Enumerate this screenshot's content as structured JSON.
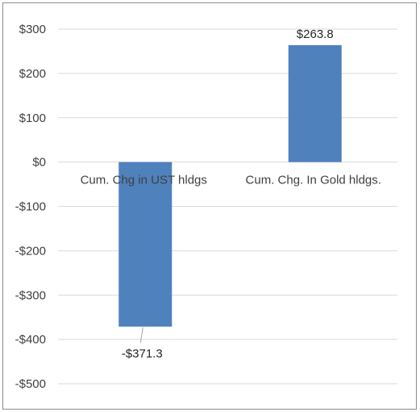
{
  "chart_data": {
    "type": "bar",
    "title": "",
    "xlabel": "",
    "ylabel": "",
    "categories": [
      "Cum. Chg in UST hldgs",
      "Cum. Chg. In Gold hldgs."
    ],
    "values": [
      -371.3,
      263.8
    ],
    "data_labels": [
      "-$371.3",
      "$263.8"
    ],
    "ylim": [
      -500,
      300
    ],
    "yticks": [
      300,
      200,
      100,
      0,
      -100,
      -200,
      -300,
      -400,
      -500
    ],
    "ytick_labels": [
      "$300",
      "$200",
      "$100",
      "$0",
      "-$100",
      "-$200",
      "-$300",
      "-$400",
      "-$500"
    ],
    "grid": true,
    "legend": "none",
    "bar_color": "#4f81bd",
    "gridline_color": "#d9d9d9",
    "border_color": "#8c8c8c"
  }
}
